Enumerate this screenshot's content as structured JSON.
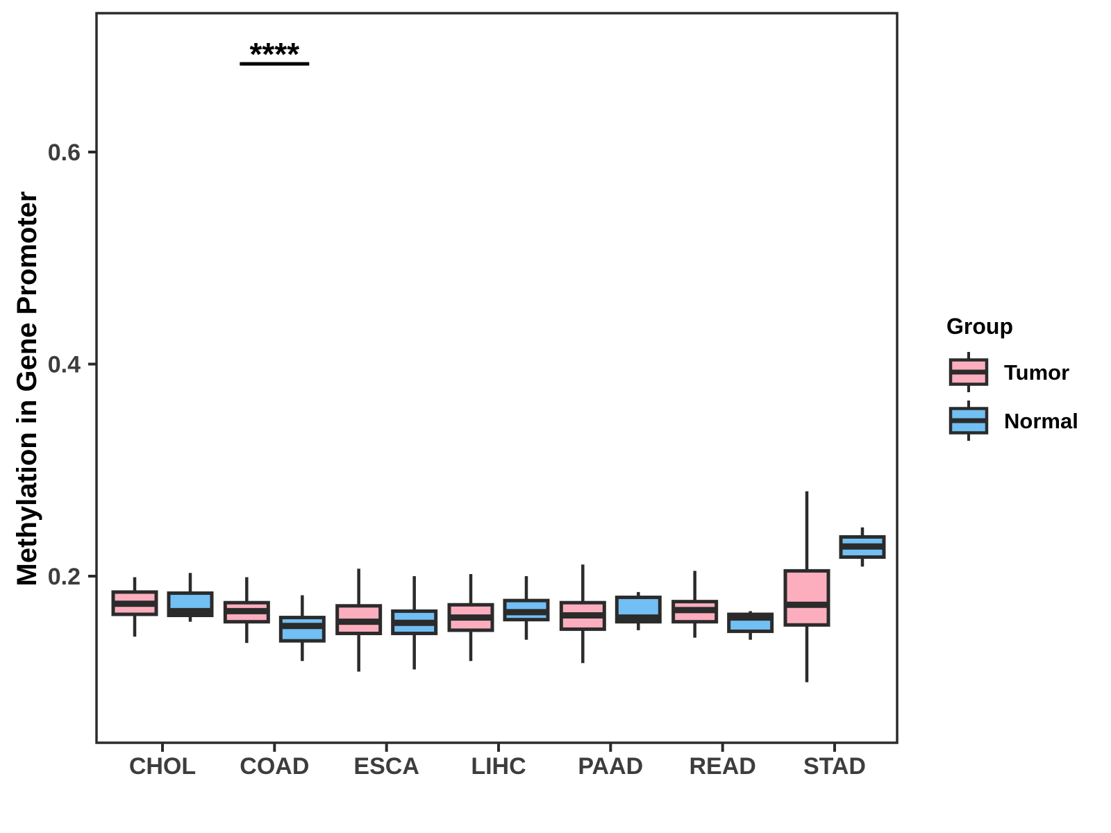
{
  "figure": {
    "y_axis_title": "Methylation in Gene Promoter",
    "x_axis_title": "",
    "legend": {
      "title": "Group",
      "items": [
        {
          "label": "Tumor",
          "color": "#FCAEBE"
        },
        {
          "label": "Normal",
          "color": "#72BFF3"
        }
      ]
    },
    "colors": {
      "tumor_fill": "#FCAEBE",
      "normal_fill": "#72BFF3",
      "line_stroke": "#2b2b2b",
      "tick_text": "#3d3d3d",
      "background": "#ffffff"
    }
  },
  "chart_data": {
    "type": "boxplot",
    "title": "",
    "xlabel": "",
    "ylabel": "Methylation in Gene Promoter",
    "categories": [
      "CHOL",
      "COAD",
      "ESCA",
      "LIHC",
      "PAAD",
      "READ",
      "STAD"
    ],
    "y_ticks": [
      0.2,
      0.4,
      0.6
    ],
    "y_tick_labels": [
      "0.2",
      "0.4",
      "0.6"
    ],
    "ylim": [
      0.04,
      0.73
    ],
    "grid": false,
    "legend_position": "right",
    "series": [
      {
        "name": "Tumor",
        "color": "#FCAEBE",
        "boxes": [
          {
            "category": "CHOL",
            "low": 0.143,
            "q1": 0.164,
            "median": 0.174,
            "q3": 0.185,
            "high": 0.199
          },
          {
            "category": "COAD",
            "low": 0.137,
            "q1": 0.157,
            "median": 0.167,
            "q3": 0.175,
            "high": 0.199
          },
          {
            "category": "ESCA",
            "low": 0.11,
            "q1": 0.146,
            "median": 0.157,
            "q3": 0.172,
            "high": 0.207
          },
          {
            "category": "LIHC",
            "low": 0.12,
            "q1": 0.149,
            "median": 0.161,
            "q3": 0.173,
            "high": 0.202
          },
          {
            "category": "PAAD",
            "low": 0.118,
            "q1": 0.15,
            "median": 0.163,
            "q3": 0.175,
            "high": 0.211
          },
          {
            "category": "READ",
            "low": 0.142,
            "q1": 0.157,
            "median": 0.168,
            "q3": 0.176,
            "high": 0.205
          },
          {
            "category": "STAD",
            "low": 0.1,
            "q1": 0.154,
            "median": 0.173,
            "q3": 0.205,
            "high": 0.28
          }
        ]
      },
      {
        "name": "Normal",
        "color": "#72BFF3",
        "boxes": [
          {
            "category": "CHOL",
            "low": 0.157,
            "q1": 0.163,
            "median": 0.167,
            "q3": 0.184,
            "high": 0.203
          },
          {
            "category": "COAD",
            "low": 0.12,
            "q1": 0.139,
            "median": 0.153,
            "q3": 0.161,
            "high": 0.182
          },
          {
            "category": "ESCA",
            "low": 0.112,
            "q1": 0.146,
            "median": 0.156,
            "q3": 0.167,
            "high": 0.2
          },
          {
            "category": "LIHC",
            "low": 0.14,
            "q1": 0.159,
            "median": 0.166,
            "q3": 0.177,
            "high": 0.2
          },
          {
            "category": "PAAD",
            "low": 0.149,
            "q1": 0.157,
            "median": 0.161,
            "q3": 0.18,
            "high": 0.185
          },
          {
            "category": "READ",
            "low": 0.14,
            "q1": 0.148,
            "median": 0.161,
            "q3": 0.164,
            "high": 0.167
          },
          {
            "category": "STAD",
            "low": 0.209,
            "q1": 0.218,
            "median": 0.228,
            "q3": 0.237,
            "high": 0.246
          }
        ]
      }
    ],
    "annotations": [
      {
        "text": "****",
        "category": "COAD",
        "meaning": "significance"
      }
    ]
  }
}
